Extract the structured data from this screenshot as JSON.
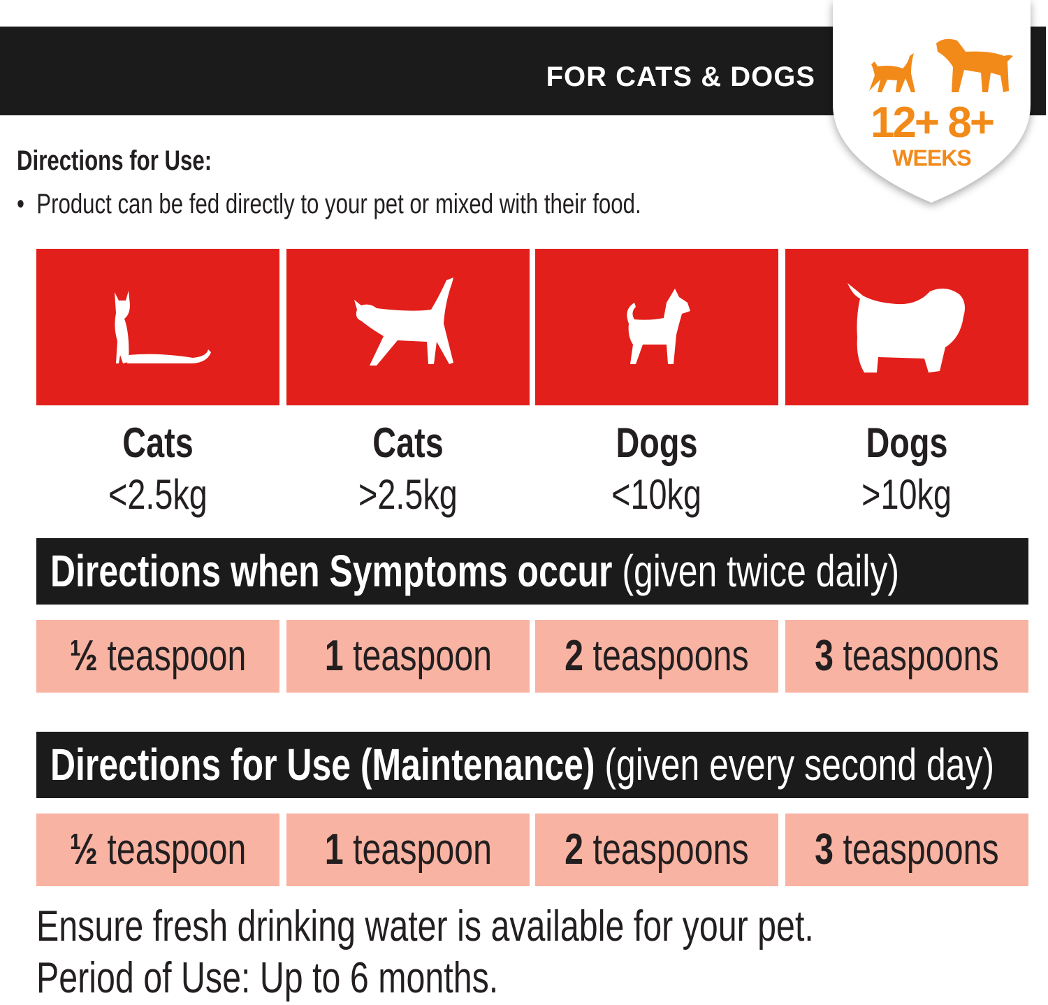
{
  "banner": {
    "title": "FOR CATS & DOGS"
  },
  "badge": {
    "cat_age": "12+",
    "dog_age": "8+",
    "unit": "WEEKS",
    "color": "#f28a1a"
  },
  "directions": {
    "title": "Directions for Use:",
    "bullet": "Product can be fed directly to your pet or mixed with their food."
  },
  "categories": [
    {
      "icon": "sitting-cat-icon",
      "animal": "Cats",
      "weight": "<2.5kg"
    },
    {
      "icon": "walking-cat-icon",
      "animal": "Cats",
      "weight": ">2.5kg"
    },
    {
      "icon": "small-dog-icon",
      "animal": "Dogs",
      "weight": "<10kg"
    },
    {
      "icon": "fluffy-dog-icon",
      "animal": "Dogs",
      "weight": ">10kg"
    }
  ],
  "symptoms": {
    "title": "Directions when Symptoms occur",
    "note": "(given twice daily)",
    "doses": [
      {
        "amount": "½",
        "unit": "teaspoon"
      },
      {
        "amount": "1",
        "unit": "teaspoon"
      },
      {
        "amount": "2",
        "unit": "teaspoons"
      },
      {
        "amount": "3",
        "unit": "teaspoons"
      }
    ]
  },
  "maintenance": {
    "title": "Directions for Use (Maintenance)",
    "note": "(given every second day)",
    "doses": [
      {
        "amount": "½",
        "unit": "teaspoon"
      },
      {
        "amount": "1",
        "unit": "teaspoon"
      },
      {
        "amount": "2",
        "unit": "teaspoons"
      },
      {
        "amount": "3",
        "unit": "teaspoons"
      }
    ]
  },
  "footer": {
    "line1": "Ensure fresh drinking water is available for your pet.",
    "line2": "Period of Use: Up to 6 months."
  },
  "colors": {
    "red": "#e21f1a",
    "pink": "#f9b3a2",
    "black": "#1b1b1b"
  }
}
